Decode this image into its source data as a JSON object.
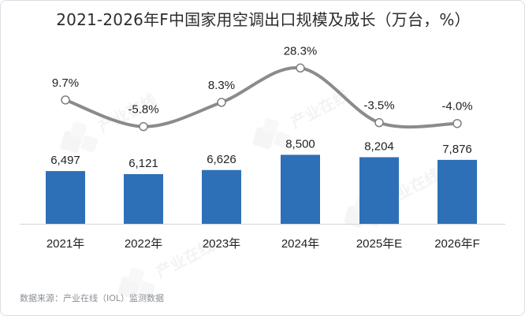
{
  "chart_data": {
    "type": "bar+line",
    "title": "2021-2026年F中国家用空调出口规模及成长（万台，%）",
    "categories": [
      "2021年",
      "2022年",
      "2023年",
      "2024年",
      "2025年E",
      "2026年F"
    ],
    "series": [
      {
        "kind": "bar",
        "values": [
          6497,
          6121,
          6626,
          8500,
          8204,
          7876
        ],
        "labels": [
          "6,497",
          "6,121",
          "6,626",
          "8,500",
          "8,204",
          "7,876"
        ],
        "color": "#2d70b7"
      },
      {
        "kind": "line",
        "values": [
          9.7,
          -5.8,
          8.3,
          28.3,
          -3.5,
          -4.0
        ],
        "labels": [
          "9.7%",
          "-5.8%",
          "8.3%",
          "28.3%",
          "-3.5%",
          "-4.0%"
        ],
        "color": "#8b8b8b"
      }
    ],
    "source": "数据来源：产业在线（IOL）监测数据",
    "watermark": "产业在线",
    "colors": {
      "bar": "#2d70b7",
      "line": "#8b8b8b",
      "text": "#222222",
      "axis": "#d6d6d6",
      "source": "#8a8f96"
    }
  }
}
